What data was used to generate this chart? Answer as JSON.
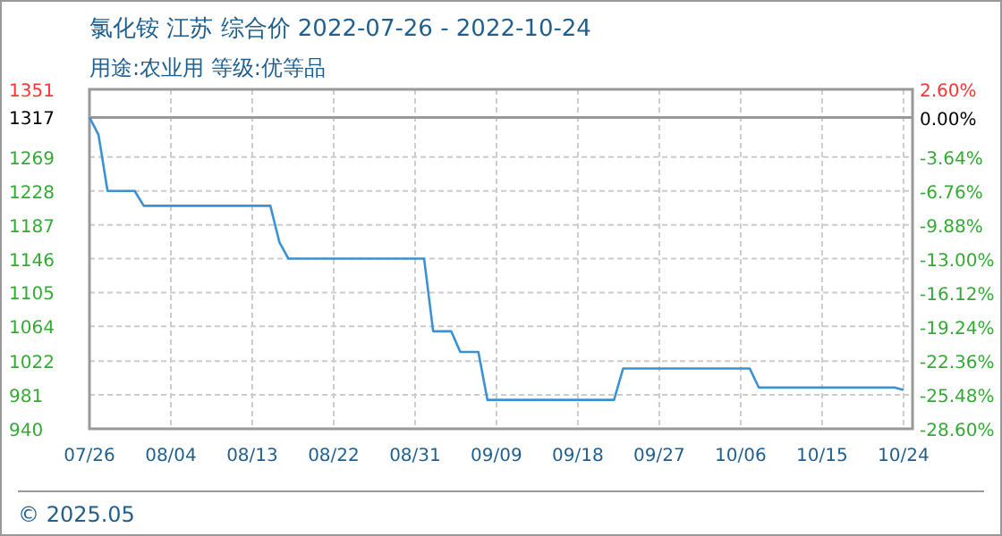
{
  "chart_data": {
    "type": "line",
    "title": "氯化铵 江苏 综合价 2022-07-26 - 2022-10-24",
    "subtitle": "用途:农业用 等级:优等品",
    "annotations": [
      "© 2025.05"
    ],
    "x": [
      "2022-07-26",
      "2022-07-27",
      "2022-07-28",
      "2022-07-31",
      "2022-08-01",
      "2022-08-15",
      "2022-08-16",
      "2022-08-17",
      "2022-09-01",
      "2022-09-02",
      "2022-09-04",
      "2022-09-05",
      "2022-09-07",
      "2022-09-08",
      "2022-09-22",
      "2022-09-23",
      "2022-10-07",
      "2022-10-08",
      "2022-10-23",
      "2022-10-24"
    ],
    "series": [
      {
        "color": "#3a92d4",
        "values": [
          1317,
          1296,
          1228,
          1228,
          1210,
          1210,
          1166,
          1146,
          1146,
          1058,
          1058,
          1033,
          1033,
          975,
          975,
          1013,
          1013,
          990,
          990,
          987
        ]
      }
    ],
    "xlim": [
      "2022-07-26",
      "2022-10-25"
    ],
    "xticks": [
      {
        "value": "2022-07-26",
        "label": "07/26"
      },
      {
        "value": "2022-08-04",
        "label": "08/04"
      },
      {
        "value": "2022-08-13",
        "label": "08/13"
      },
      {
        "value": "2022-08-22",
        "label": "08/22"
      },
      {
        "value": "2022-08-31",
        "label": "08/31"
      },
      {
        "value": "2022-09-09",
        "label": "09/09"
      },
      {
        "value": "2022-09-18",
        "label": "09/18"
      },
      {
        "value": "2022-09-27",
        "label": "09/27"
      },
      {
        "value": "2022-10-06",
        "label": "10/06"
      },
      {
        "value": "2022-10-15",
        "label": "10/15"
      },
      {
        "value": "2022-10-24",
        "label": "10/24"
      }
    ],
    "ylim": [
      940,
      1351
    ],
    "yticks": [
      940,
      981,
      1022,
      1064,
      1105,
      1146,
      1187,
      1228,
      1269,
      1317,
      1351
    ],
    "y2lim": [
      -28.6,
      2.6
    ],
    "y2ticks": [
      {
        "value": -28.6,
        "label": "-28.60%"
      },
      {
        "value": -25.48,
        "label": "-25.48%"
      },
      {
        "value": -22.36,
        "label": "-22.36%"
      },
      {
        "value": -19.24,
        "label": "-19.24%"
      },
      {
        "value": -16.12,
        "label": "-16.12%"
      },
      {
        "value": -13.0,
        "label": "-13.00%"
      },
      {
        "value": -9.88,
        "label": "-9.88%"
      },
      {
        "value": -6.76,
        "label": "-6.76%"
      },
      {
        "value": -3.64,
        "label": "-3.64%"
      },
      {
        "value": 0,
        "label": "0.00%"
      },
      {
        "value": 2.6,
        "label": "2.60%"
      }
    ],
    "ref_lines": [
      {
        "axis": "y",
        "value": 1317,
        "color": "#999999"
      }
    ],
    "grid": true,
    "line_style": "solid",
    "marker": "none"
  }
}
